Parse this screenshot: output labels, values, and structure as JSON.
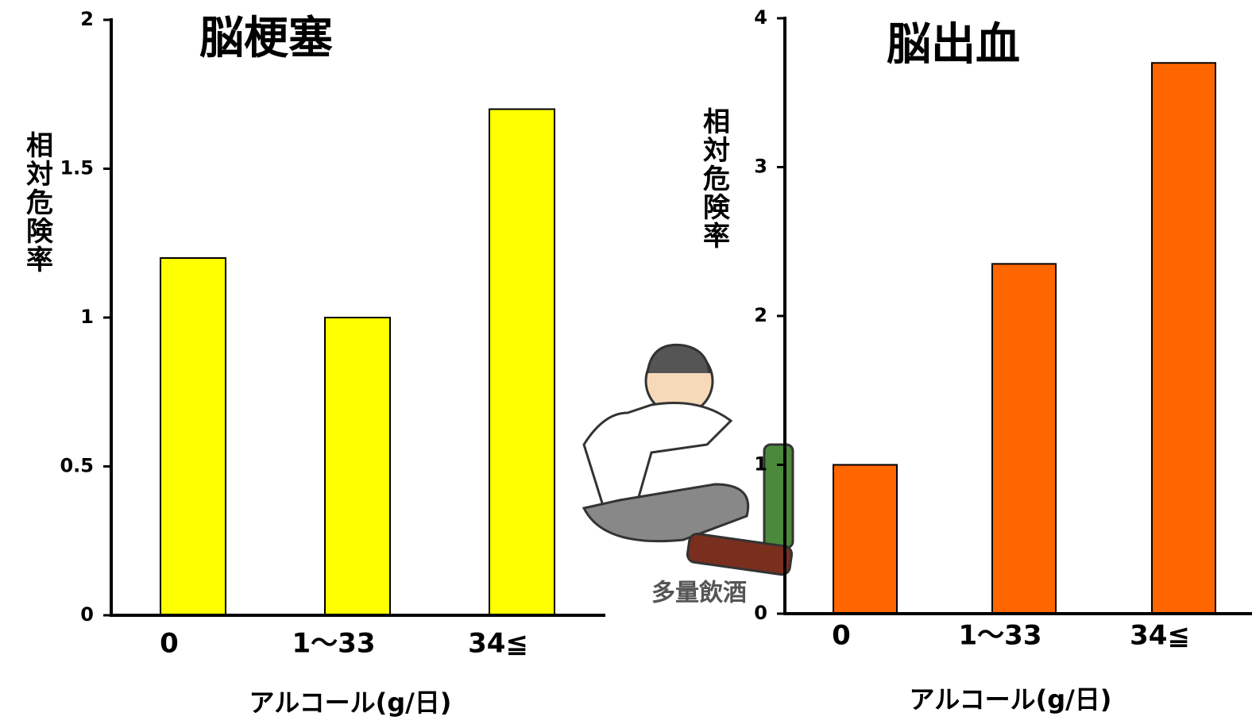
{
  "chart_data": [
    {
      "type": "bar",
      "title": "脳梗塞",
      "y_label": "相対危険率",
      "x_label": "アルコール(g/日)",
      "categories": [
        "0",
        "1〜33",
        "34≦"
      ],
      "values": [
        1.2,
        1.0,
        1.7
      ],
      "color": "#ffff00",
      "ylim": [
        0,
        2
      ],
      "yticks": [
        0,
        0.5,
        1,
        1.5,
        2
      ]
    },
    {
      "type": "bar",
      "title": "脳出血",
      "y_label": "相対危険率",
      "x_label": "アルコール(g/日)",
      "categories": [
        "0",
        "1〜33",
        "34≦"
      ],
      "values": [
        1.0,
        2.35,
        3.7
      ],
      "color": "#ff6600",
      "ylim": [
        0,
        4
      ],
      "yticks": [
        0,
        1,
        2,
        3,
        4
      ]
    }
  ],
  "illustration": {
    "caption": "多量飲酒"
  }
}
